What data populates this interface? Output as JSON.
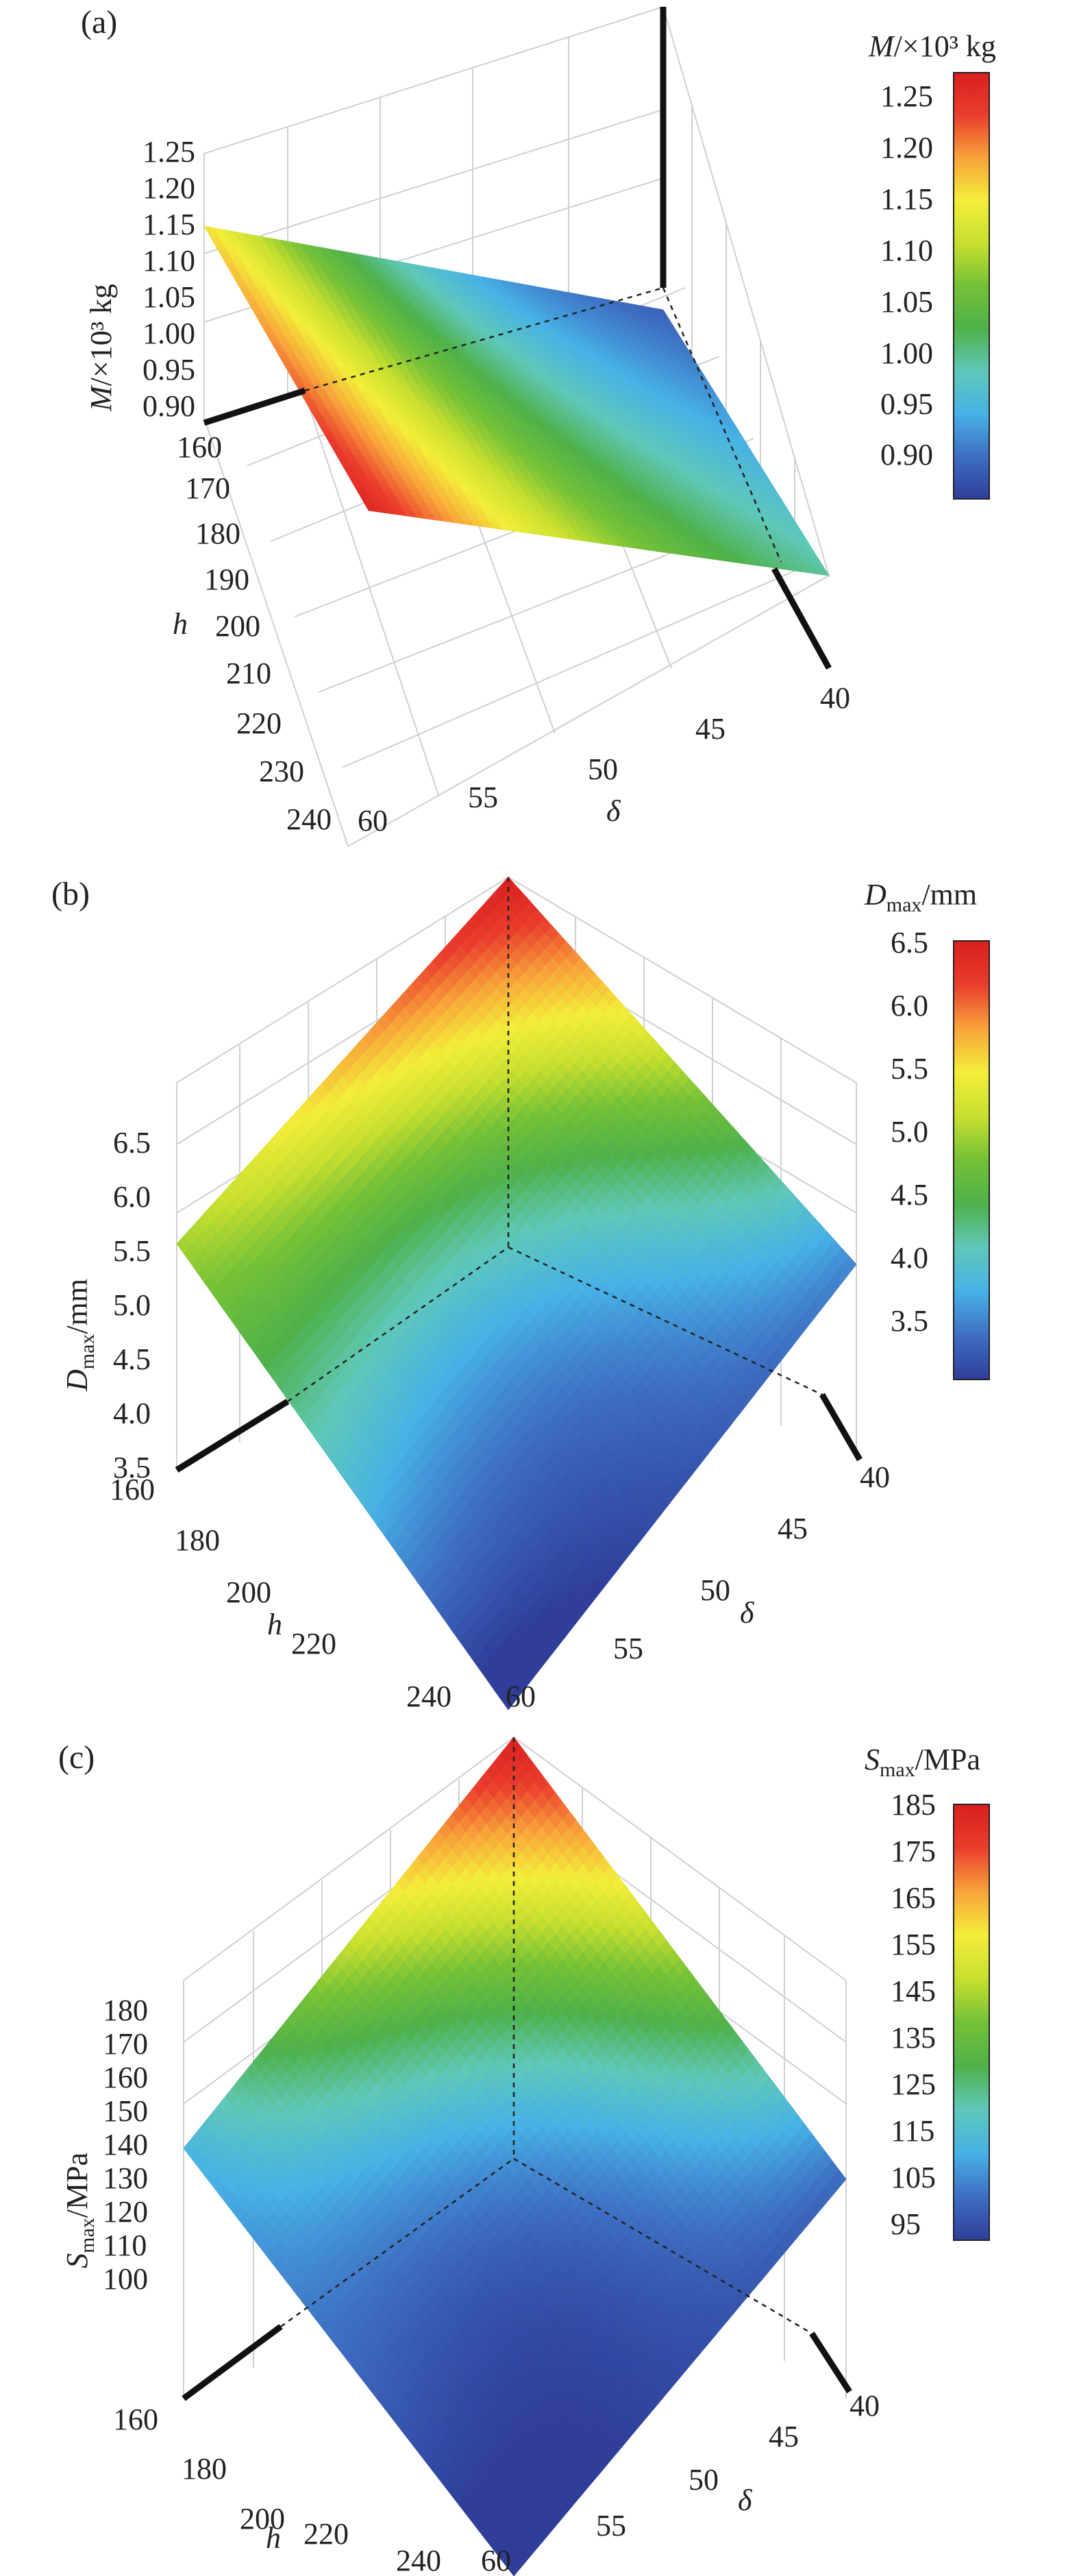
{
  "palette": {
    "stops": [
      "#2f3e99",
      "#3e6fc2",
      "#47b1e6",
      "#5fc8b9",
      "#4fb14a",
      "#74c137",
      "#c8df2f",
      "#f3ee3a",
      "#f8a33a",
      "#ea3d2d",
      "#d91f1f"
    ]
  },
  "panels": [
    {
      "label": "(a)",
      "chart_data": {
        "type": "surface3d",
        "xlabel": "δ",
        "ylabel": "h",
        "zlabel_main": "M",
        "zlabel_unit": "/×10³ kg",
        "colorbar_title": "M/×10³ kg",
        "x_ticks": [
          "60",
          "55",
          "50",
          "45",
          "40"
        ],
        "y_ticks": [
          "160",
          "170",
          "180",
          "190",
          "200",
          "210",
          "220",
          "230",
          "240"
        ],
        "z_ticks": [
          "0.90",
          "0.95",
          "1.00",
          "1.05",
          "1.10",
          "1.15",
          "1.20",
          "1.25"
        ],
        "colorbar_ticks": [
          "0.90",
          "0.95",
          "1.00",
          "1.05",
          "1.10",
          "1.15",
          "1.20",
          "1.25"
        ],
        "xlim": [
          40,
          60
        ],
        "ylim": [
          160,
          240
        ],
        "zlim": [
          0.87,
          1.27
        ],
        "corner_values": {
          "d40_h160": 0.9,
          "d60_h160": 1.16,
          "d40_h240": 1.0,
          "d60_h240": 1.26
        }
      }
    },
    {
      "label": "(b)",
      "chart_data": {
        "type": "surface3d",
        "xlabel": "δ",
        "ylabel": "h",
        "zlabel_main": "D",
        "zlabel_sub": "max",
        "zlabel_unit": "/mm",
        "colorbar_title_main": "D",
        "colorbar_title_sub": "max",
        "colorbar_title_unit": "/mm",
        "x_ticks": [
          "60",
          "55",
          "50",
          "45",
          "40"
        ],
        "y_ticks": [
          "160",
          "180",
          "200",
          "220",
          "240"
        ],
        "z_ticks": [
          "3.5",
          "4.0",
          "4.5",
          "5.0",
          "5.5",
          "6.0",
          "6.5"
        ],
        "colorbar_ticks": [
          "3.5",
          "4.0",
          "4.5",
          "5.0",
          "5.5",
          "6.0",
          "6.5"
        ],
        "xlim": [
          40,
          60
        ],
        "ylim": [
          160,
          240
        ],
        "zlim": [
          3.1,
          6.5
        ],
        "corner_values": {
          "d40_h160": 6.5,
          "d60_h160": 5.0,
          "d40_h240": 3.55,
          "d60_h240": 3.1
        }
      }
    },
    {
      "label": "(c)",
      "chart_data": {
        "type": "surface3d",
        "xlabel": "δ",
        "ylabel": "h",
        "zlabel_main": "S",
        "zlabel_sub": "max",
        "zlabel_unit": "/MPa",
        "colorbar_title_main": "S",
        "colorbar_title_sub": "max",
        "colorbar_title_unit": "/MPa",
        "x_ticks": [
          "60",
          "55",
          "50",
          "45",
          "40"
        ],
        "y_ticks": [
          "160",
          "180",
          "200",
          "220",
          "240"
        ],
        "z_ticks": [
          "100",
          "110",
          "120",
          "130",
          "140",
          "150",
          "160",
          "170",
          "180"
        ],
        "colorbar_ticks": [
          "95",
          "105",
          "115",
          "125",
          "135",
          "145",
          "155",
          "165",
          "175",
          "185"
        ],
        "xlim": [
          40,
          60
        ],
        "ylim": [
          160,
          240
        ],
        "zlim": [
          92,
          185
        ],
        "corner_values": {
          "d40_h160": 185,
          "d60_h160": 112,
          "d40_h240": 100,
          "d60_h240": 93
        }
      }
    }
  ]
}
